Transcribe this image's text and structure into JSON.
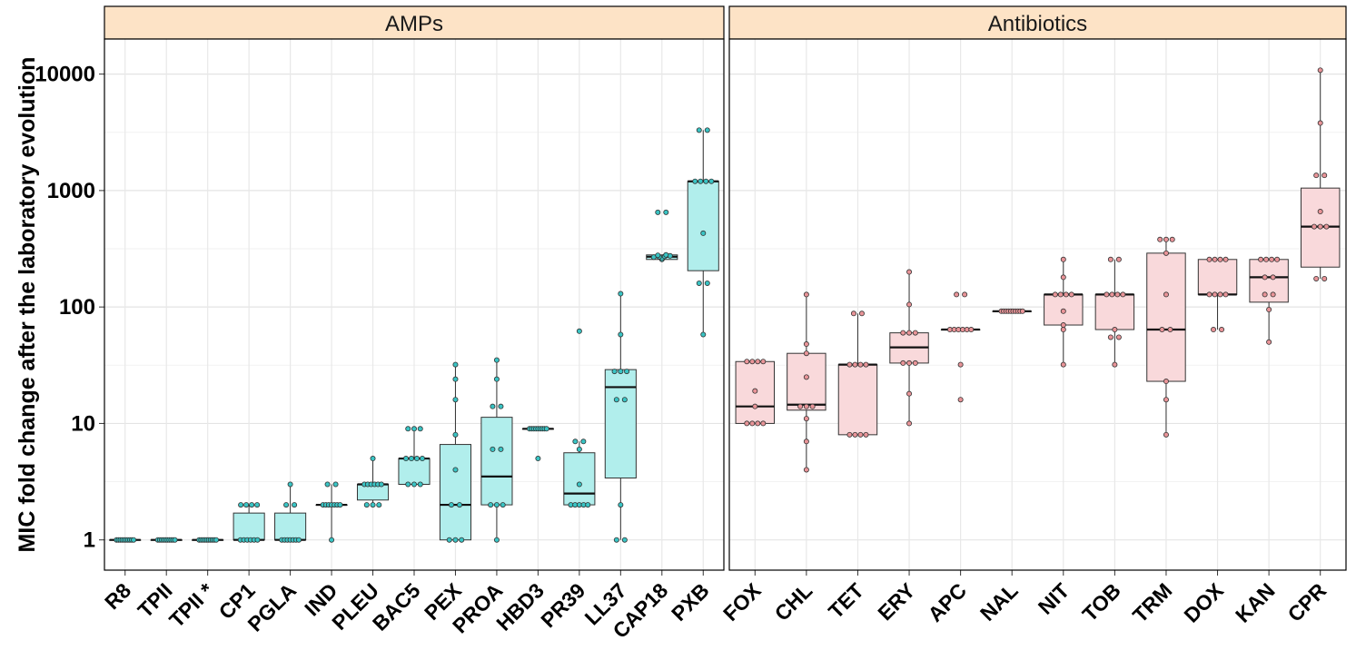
{
  "chart_data": {
    "type": "box",
    "ylabel": "MIC fold change after the laboratory evolution",
    "xlabel": "",
    "y_scale": "log10",
    "ylim": [
      0.55,
      20000
    ],
    "yticks": [
      1,
      10,
      100,
      1000,
      10000
    ],
    "ytick_labels": [
      "1",
      "10",
      "100",
      "1000",
      "10000"
    ],
    "grid": true,
    "colors": {
      "strip_fill": "#FDE3C6",
      "amp_fill": "#B1EEEC",
      "amp_point": "#39C4C4",
      "abx_fill": "#F9D9DB",
      "abx_point": "#E99498"
    },
    "panels": [
      {
        "name": "AMPs",
        "fill_key": "amp_fill",
        "point_key": "amp_point",
        "groups": [
          {
            "label": "R8",
            "q1": 1,
            "median": 1,
            "q3": 1,
            "whisker_low": 1,
            "whisker_high": 1,
            "points": [
              1,
              1,
              1,
              1,
              1,
              1,
              1,
              1,
              1,
              1
            ]
          },
          {
            "label": "TPII",
            "q1": 1,
            "median": 1,
            "q3": 1,
            "whisker_low": 1,
            "whisker_high": 1,
            "points": [
              1,
              1,
              1,
              1,
              1,
              1,
              1,
              1,
              1,
              1
            ]
          },
          {
            "label": "TPII *",
            "q1": 1,
            "median": 1,
            "q3": 1,
            "whisker_low": 1,
            "whisker_high": 1,
            "points": [
              1,
              1,
              1,
              1,
              1,
              1,
              1,
              1,
              1,
              1
            ]
          },
          {
            "label": "CP1",
            "q1": 1,
            "median": 1,
            "q3": 1.7,
            "whisker_low": 1,
            "whisker_high": 2,
            "points": [
              1,
              1,
              1,
              1,
              1,
              1,
              2,
              2,
              2,
              2
            ]
          },
          {
            "label": "PGLA",
            "q1": 1,
            "median": 1,
            "q3": 1.7,
            "whisker_low": 1,
            "whisker_high": 3,
            "points": [
              1,
              1,
              1,
              1,
              1,
              1,
              1,
              2,
              2,
              3
            ]
          },
          {
            "label": "IND",
            "q1": 2,
            "median": 2,
            "q3": 2,
            "whisker_low": 1,
            "whisker_high": 3,
            "points": [
              1,
              2,
              2,
              2,
              2,
              2,
              2,
              2,
              3,
              3
            ]
          },
          {
            "label": "PLEU",
            "q1": 2.2,
            "median": 3,
            "q3": 3,
            "whisker_low": 2,
            "whisker_high": 5,
            "points": [
              2,
              2,
              2,
              3,
              3,
              3,
              3,
              3,
              3,
              5
            ]
          },
          {
            "label": "BAC5",
            "q1": 3,
            "median": 5,
            "q3": 5,
            "whisker_low": 3,
            "whisker_high": 9,
            "points": [
              3,
              3,
              3,
              5,
              5,
              5,
              5,
              9,
              9,
              9
            ]
          },
          {
            "label": "PEX",
            "q1": 1,
            "median": 2,
            "q3": 6.6,
            "whisker_low": 1,
            "whisker_high": 32,
            "points": [
              1,
              1,
              1,
              2,
              2,
              4,
              8,
              16,
              24,
              32
            ]
          },
          {
            "label": "PROA",
            "q1": 2,
            "median": 3.5,
            "q3": 11.3,
            "whisker_low": 1,
            "whisker_high": 35,
            "points": [
              1,
              2,
              2,
              2,
              6,
              6,
              14,
              14,
              24,
              35
            ]
          },
          {
            "label": "HBD3",
            "q1": 9,
            "median": 9,
            "q3": 9,
            "whisker_low": 9,
            "whisker_high": 9,
            "points": [
              5,
              9,
              9,
              9,
              9,
              9,
              9,
              9,
              9,
              9
            ]
          },
          {
            "label": "PR39",
            "q1": 2,
            "median": 2.5,
            "q3": 5.6,
            "whisker_low": 2,
            "whisker_high": 7,
            "points": [
              2,
              2,
              2,
              2,
              2,
              3,
              6,
              7,
              7,
              62
            ]
          },
          {
            "label": "LL37",
            "q1": 3.4,
            "median": 20.5,
            "q3": 29,
            "whisker_low": 1,
            "whisker_high": 130,
            "points": [
              1,
              1,
              2,
              16,
              16,
              28,
              28,
              28,
              58,
              130
            ]
          },
          {
            "label": "CAP18",
            "q1": 256,
            "median": 270,
            "q3": 280,
            "whisker_low": 256,
            "whisker_high": 280,
            "points": [
              256,
              262,
              268,
              270,
              272,
              275,
              278,
              280,
              650,
              650
            ]
          },
          {
            "label": "PXB",
            "q1": 205,
            "median": 1200,
            "q3": 1200,
            "whisker_low": 58,
            "whisker_high": 3300,
            "points": [
              58,
              160,
              160,
              430,
              1200,
              1200,
              1200,
              1200,
              3300,
              3300
            ]
          }
        ]
      },
      {
        "name": "Antibiotics",
        "fill_key": "abx_fill",
        "point_key": "abx_point",
        "groups": [
          {
            "label": "FOX",
            "q1": 10,
            "median": 14,
            "q3": 34,
            "whisker_low": 10,
            "whisker_high": 34,
            "points": [
              10,
              10,
              10,
              10,
              14,
              19,
              34,
              34,
              34,
              34
            ]
          },
          {
            "label": "CHL",
            "q1": 13,
            "median": 14.5,
            "q3": 40,
            "whisker_low": 4,
            "whisker_high": 128,
            "points": [
              4,
              7,
              11,
              14,
              14,
              14,
              25,
              40,
              48,
              128
            ]
          },
          {
            "label": "TET",
            "q1": 8,
            "median": 32,
            "q3": 32,
            "whisker_low": 8,
            "whisker_high": 88,
            "points": [
              8,
              8,
              8,
              8,
              32,
              32,
              32,
              32,
              88,
              88
            ]
          },
          {
            "label": "ERY",
            "q1": 33,
            "median": 45,
            "q3": 60,
            "whisker_low": 10,
            "whisker_high": 200,
            "points": [
              10,
              18,
              33,
              33,
              33,
              60,
              60,
              60,
              105,
              200
            ]
          },
          {
            "label": "APC",
            "q1": 64,
            "median": 64,
            "q3": 64,
            "whisker_low": 64,
            "whisker_high": 64,
            "points": [
              16,
              32,
              64,
              64,
              64,
              64,
              64,
              64,
              128,
              128
            ]
          },
          {
            "label": "NAL",
            "q1": 92,
            "median": 92,
            "q3": 92,
            "whisker_low": 92,
            "whisker_high": 92,
            "points": [
              92,
              92,
              92,
              92,
              92,
              92,
              92,
              92,
              92,
              92
            ]
          },
          {
            "label": "NIT",
            "q1": 70,
            "median": 128,
            "q3": 128,
            "whisker_low": 32,
            "whisker_high": 256,
            "points": [
              32,
              64,
              70,
              92,
              128,
              128,
              128,
              128,
              180,
              256
            ]
          },
          {
            "label": "TOB",
            "q1": 64,
            "median": 128,
            "q3": 128,
            "whisker_low": 32,
            "whisker_high": 256,
            "points": [
              32,
              55,
              55,
              64,
              128,
              128,
              128,
              128,
              256,
              256
            ]
          },
          {
            "label": "TRM",
            "q1": 23,
            "median": 64,
            "q3": 290,
            "whisker_low": 8,
            "whisker_high": 380,
            "points": [
              8,
              16,
              23,
              64,
              64,
              128,
              290,
              380,
              380,
              380
            ]
          },
          {
            "label": "DOX",
            "q1": 128,
            "median": 128,
            "q3": 256,
            "whisker_low": 64,
            "whisker_high": 256,
            "points": [
              64,
              64,
              128,
              128,
              128,
              128,
              256,
              256,
              256,
              256
            ]
          },
          {
            "label": "KAN",
            "q1": 110,
            "median": 180,
            "q3": 256,
            "whisker_low": 50,
            "whisker_high": 256,
            "points": [
              50,
              95,
              128,
              128,
              180,
              180,
              256,
              256,
              256,
              256
            ]
          },
          {
            "label": "CPR",
            "q1": 220,
            "median": 490,
            "q3": 1050,
            "whisker_low": 175,
            "whisker_high": 10800,
            "points": [
              175,
              175,
              490,
              490,
              490,
              660,
              1350,
              1350,
              3800,
              10800
            ]
          }
        ]
      }
    ]
  }
}
